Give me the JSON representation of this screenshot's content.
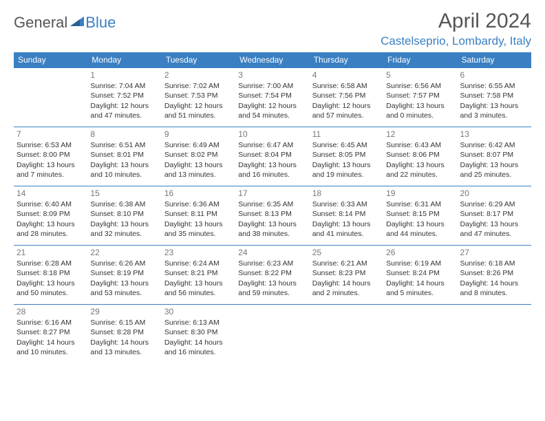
{
  "logo": {
    "part1": "General",
    "part2": "Blue"
  },
  "title": "April 2024",
  "location": "Castelseprio, Lombardy, Italy",
  "colors": {
    "accent": "#3a7fc2",
    "header_text": "#ffffff",
    "body_text": "#333333",
    "daynum": "#777777",
    "title_text": "#555555",
    "background": "#ffffff"
  },
  "weekdays": [
    "Sunday",
    "Monday",
    "Tuesday",
    "Wednesday",
    "Thursday",
    "Friday",
    "Saturday"
  ],
  "weeks": [
    [
      null,
      {
        "n": "1",
        "sr": "Sunrise: 7:04 AM",
        "ss": "Sunset: 7:52 PM",
        "d1": "Daylight: 12 hours",
        "d2": "and 47 minutes."
      },
      {
        "n": "2",
        "sr": "Sunrise: 7:02 AM",
        "ss": "Sunset: 7:53 PM",
        "d1": "Daylight: 12 hours",
        "d2": "and 51 minutes."
      },
      {
        "n": "3",
        "sr": "Sunrise: 7:00 AM",
        "ss": "Sunset: 7:54 PM",
        "d1": "Daylight: 12 hours",
        "d2": "and 54 minutes."
      },
      {
        "n": "4",
        "sr": "Sunrise: 6:58 AM",
        "ss": "Sunset: 7:56 PM",
        "d1": "Daylight: 12 hours",
        "d2": "and 57 minutes."
      },
      {
        "n": "5",
        "sr": "Sunrise: 6:56 AM",
        "ss": "Sunset: 7:57 PM",
        "d1": "Daylight: 13 hours",
        "d2": "and 0 minutes."
      },
      {
        "n": "6",
        "sr": "Sunrise: 6:55 AM",
        "ss": "Sunset: 7:58 PM",
        "d1": "Daylight: 13 hours",
        "d2": "and 3 minutes."
      }
    ],
    [
      {
        "n": "7",
        "sr": "Sunrise: 6:53 AM",
        "ss": "Sunset: 8:00 PM",
        "d1": "Daylight: 13 hours",
        "d2": "and 7 minutes."
      },
      {
        "n": "8",
        "sr": "Sunrise: 6:51 AM",
        "ss": "Sunset: 8:01 PM",
        "d1": "Daylight: 13 hours",
        "d2": "and 10 minutes."
      },
      {
        "n": "9",
        "sr": "Sunrise: 6:49 AM",
        "ss": "Sunset: 8:02 PM",
        "d1": "Daylight: 13 hours",
        "d2": "and 13 minutes."
      },
      {
        "n": "10",
        "sr": "Sunrise: 6:47 AM",
        "ss": "Sunset: 8:04 PM",
        "d1": "Daylight: 13 hours",
        "d2": "and 16 minutes."
      },
      {
        "n": "11",
        "sr": "Sunrise: 6:45 AM",
        "ss": "Sunset: 8:05 PM",
        "d1": "Daylight: 13 hours",
        "d2": "and 19 minutes."
      },
      {
        "n": "12",
        "sr": "Sunrise: 6:43 AM",
        "ss": "Sunset: 8:06 PM",
        "d1": "Daylight: 13 hours",
        "d2": "and 22 minutes."
      },
      {
        "n": "13",
        "sr": "Sunrise: 6:42 AM",
        "ss": "Sunset: 8:07 PM",
        "d1": "Daylight: 13 hours",
        "d2": "and 25 minutes."
      }
    ],
    [
      {
        "n": "14",
        "sr": "Sunrise: 6:40 AM",
        "ss": "Sunset: 8:09 PM",
        "d1": "Daylight: 13 hours",
        "d2": "and 28 minutes."
      },
      {
        "n": "15",
        "sr": "Sunrise: 6:38 AM",
        "ss": "Sunset: 8:10 PM",
        "d1": "Daylight: 13 hours",
        "d2": "and 32 minutes."
      },
      {
        "n": "16",
        "sr": "Sunrise: 6:36 AM",
        "ss": "Sunset: 8:11 PM",
        "d1": "Daylight: 13 hours",
        "d2": "and 35 minutes."
      },
      {
        "n": "17",
        "sr": "Sunrise: 6:35 AM",
        "ss": "Sunset: 8:13 PM",
        "d1": "Daylight: 13 hours",
        "d2": "and 38 minutes."
      },
      {
        "n": "18",
        "sr": "Sunrise: 6:33 AM",
        "ss": "Sunset: 8:14 PM",
        "d1": "Daylight: 13 hours",
        "d2": "and 41 minutes."
      },
      {
        "n": "19",
        "sr": "Sunrise: 6:31 AM",
        "ss": "Sunset: 8:15 PM",
        "d1": "Daylight: 13 hours",
        "d2": "and 44 minutes."
      },
      {
        "n": "20",
        "sr": "Sunrise: 6:29 AM",
        "ss": "Sunset: 8:17 PM",
        "d1": "Daylight: 13 hours",
        "d2": "and 47 minutes."
      }
    ],
    [
      {
        "n": "21",
        "sr": "Sunrise: 6:28 AM",
        "ss": "Sunset: 8:18 PM",
        "d1": "Daylight: 13 hours",
        "d2": "and 50 minutes."
      },
      {
        "n": "22",
        "sr": "Sunrise: 6:26 AM",
        "ss": "Sunset: 8:19 PM",
        "d1": "Daylight: 13 hours",
        "d2": "and 53 minutes."
      },
      {
        "n": "23",
        "sr": "Sunrise: 6:24 AM",
        "ss": "Sunset: 8:21 PM",
        "d1": "Daylight: 13 hours",
        "d2": "and 56 minutes."
      },
      {
        "n": "24",
        "sr": "Sunrise: 6:23 AM",
        "ss": "Sunset: 8:22 PM",
        "d1": "Daylight: 13 hours",
        "d2": "and 59 minutes."
      },
      {
        "n": "25",
        "sr": "Sunrise: 6:21 AM",
        "ss": "Sunset: 8:23 PM",
        "d1": "Daylight: 14 hours",
        "d2": "and 2 minutes."
      },
      {
        "n": "26",
        "sr": "Sunrise: 6:19 AM",
        "ss": "Sunset: 8:24 PM",
        "d1": "Daylight: 14 hours",
        "d2": "and 5 minutes."
      },
      {
        "n": "27",
        "sr": "Sunrise: 6:18 AM",
        "ss": "Sunset: 8:26 PM",
        "d1": "Daylight: 14 hours",
        "d2": "and 8 minutes."
      }
    ],
    [
      {
        "n": "28",
        "sr": "Sunrise: 6:16 AM",
        "ss": "Sunset: 8:27 PM",
        "d1": "Daylight: 14 hours",
        "d2": "and 10 minutes."
      },
      {
        "n": "29",
        "sr": "Sunrise: 6:15 AM",
        "ss": "Sunset: 8:28 PM",
        "d1": "Daylight: 14 hours",
        "d2": "and 13 minutes."
      },
      {
        "n": "30",
        "sr": "Sunrise: 6:13 AM",
        "ss": "Sunset: 8:30 PM",
        "d1": "Daylight: 14 hours",
        "d2": "and 16 minutes."
      },
      null,
      null,
      null,
      null
    ]
  ]
}
